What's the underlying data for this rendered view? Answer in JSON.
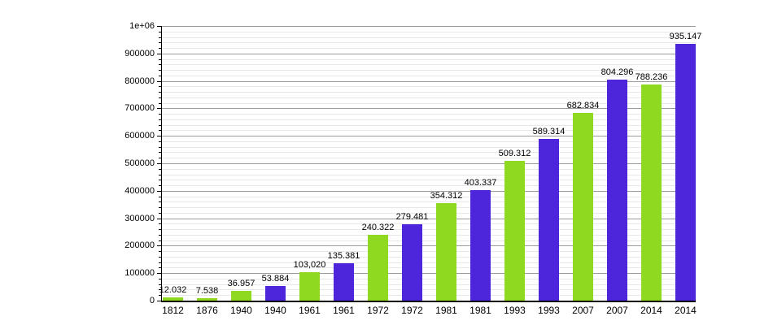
{
  "chart_data": {
    "type": "bar",
    "title": "",
    "xlabel": "",
    "ylabel": "",
    "legend": "none",
    "grid": true,
    "categories": [
      "1812",
      "1876",
      "1940",
      "1940",
      "1961",
      "1961",
      "1972",
      "1972",
      "1981",
      "1981",
      "1993",
      "1993",
      "2007",
      "2007",
      "2014",
      "2014"
    ],
    "values": [
      12032,
      7538,
      36957,
      53884,
      103020,
      135381,
      240322,
      279481,
      354312,
      403337,
      509312,
      589314,
      682834,
      804296,
      788236,
      935147
    ],
    "value_labels": [
      "12.032",
      "7.538",
      "36.957",
      "53.884",
      "103,020",
      "135.381",
      "240.322",
      "279.481",
      "354.312",
      "403.337",
      "509.312",
      "589.314",
      "682.834",
      "804.296",
      "788.236",
      "935.147"
    ],
    "bar_color_keys": [
      "green",
      "green",
      "green",
      "blue",
      "green",
      "blue",
      "green",
      "blue",
      "green",
      "blue",
      "green",
      "blue",
      "green",
      "blue",
      "green",
      "blue"
    ],
    "colors": {
      "green": "#8FD921",
      "blue": "#4D25DB"
    },
    "ylim": [
      0,
      1000000
    ],
    "y_major_step": 100000,
    "y_minor_step": 20000,
    "y_tick_labels": [
      "0",
      "100000",
      "200000",
      "300000",
      "400000",
      "500000",
      "600000",
      "700000",
      "800000",
      "900000",
      "1e+06"
    ]
  }
}
